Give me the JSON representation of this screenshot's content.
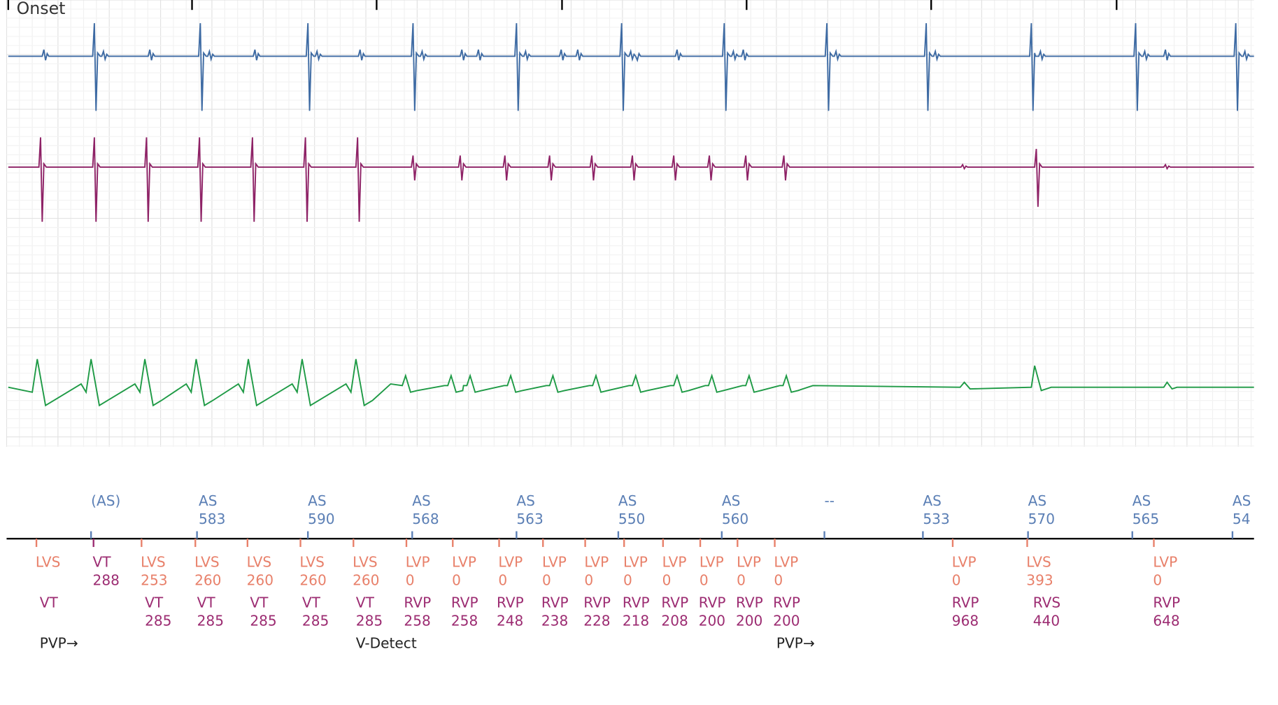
{
  "header": {
    "label": "Onset"
  },
  "atrial_markers": [
    {
      "label": "(AS)"
    },
    {
      "label": "AS",
      "interval": 583
    },
    {
      "label": "AS",
      "interval": 590
    },
    {
      "label": "AS",
      "interval": 568
    },
    {
      "label": "AS",
      "interval": 563
    },
    {
      "label": "AS",
      "interval": 550
    },
    {
      "label": "AS",
      "interval": 560
    },
    {
      "label": "--"
    },
    {
      "label": "AS",
      "interval": 533
    },
    {
      "label": "AS",
      "interval": 570
    },
    {
      "label": "AS",
      "interval": 565
    },
    {
      "label": "AS",
      "interval": 54
    }
  ],
  "atrial_color": "#5b7fb5",
  "lv_markers": [
    {
      "label": "LVS",
      "color": "#e8806a"
    },
    {
      "label": "VT",
      "interval": 288,
      "color": "#9c2c72"
    },
    {
      "label": "LVS",
      "interval": 253,
      "color": "#e8806a"
    },
    {
      "label": "LVS",
      "interval": 260,
      "color": "#e8806a"
    },
    {
      "label": "LVS",
      "interval": 260,
      "color": "#e8806a"
    },
    {
      "label": "LVS",
      "interval": 260,
      "color": "#e8806a"
    },
    {
      "label": "LVS",
      "interval": 260,
      "color": "#e8806a"
    },
    {
      "label": "LVP",
      "interval": 0,
      "color": "#e8806a"
    },
    {
      "label": "LVP",
      "interval": 0,
      "color": "#e8806a"
    },
    {
      "label": "LVP",
      "interval": 0,
      "color": "#e8806a"
    },
    {
      "label": "LVP",
      "interval": 0,
      "color": "#e8806a"
    },
    {
      "label": "LVP",
      "interval": 0,
      "color": "#e8806a"
    },
    {
      "label": "LVP",
      "interval": 0,
      "color": "#e8806a"
    },
    {
      "label": "LVP",
      "interval": 0,
      "color": "#e8806a"
    },
    {
      "label": "LVP",
      "interval": 0,
      "color": "#e8806a"
    },
    {
      "label": "LVP",
      "interval": 0,
      "color": "#e8806a"
    },
    {
      "label": "LVP",
      "interval": 0,
      "color": "#e8806a"
    },
    {
      "label": "LVP",
      "interval": 0,
      "color": "#e8806a"
    },
    {
      "label": "LVS",
      "interval": 393,
      "color": "#e8806a"
    },
    {
      "label": "LVP",
      "interval": 0,
      "color": "#e8806a"
    }
  ],
  "rv_markers": [
    {
      "label": "VT"
    },
    {
      "label": "VT",
      "interval": 285
    },
    {
      "label": "VT",
      "interval": 285
    },
    {
      "label": "VT",
      "interval": 285
    },
    {
      "label": "VT",
      "interval": 285
    },
    {
      "label": "VT",
      "interval": 285
    },
    {
      "label": "RVP",
      "interval": 258
    },
    {
      "label": "RVP",
      "interval": 258
    },
    {
      "label": "RVP",
      "interval": 248
    },
    {
      "label": "RVP",
      "interval": 238
    },
    {
      "label": "RVP",
      "interval": 228
    },
    {
      "label": "RVP",
      "interval": 218
    },
    {
      "label": "RVP",
      "interval": 208
    },
    {
      "label": "RVP",
      "interval": 200
    },
    {
      "label": "RVP",
      "interval": 200
    },
    {
      "label": "RVP",
      "interval": 200
    },
    {
      "label": "RVP",
      "interval": 968
    },
    {
      "label": "RVS",
      "interval": 440
    },
    {
      "label": "RVP",
      "interval": 648
    }
  ],
  "rv_color": "#9c2c72",
  "annotations": [
    "PVP→",
    "V-Detect",
    "PVP→"
  ]
}
